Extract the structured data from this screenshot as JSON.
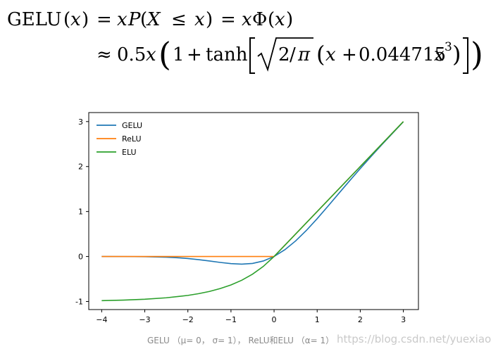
{
  "formula": {
    "line1": {
      "lhs_func": "GELU",
      "lhs_arg": "x",
      "eq1": "=",
      "mid_x": "x",
      "mid_P": "P",
      "mid_X": "X",
      "leq": "≤",
      "mid_arg": "x",
      "eq2": "=",
      "rhs_x": "x",
      "rhs_phi": "Φ",
      "rhs_arg": "x"
    },
    "line2": {
      "approx": "≈",
      "coef": "0.5",
      "x1": "x",
      "one": "1",
      "plus1": "+",
      "tanh": "tanh",
      "frac_num": "2",
      "frac_slash": "/",
      "frac_den": "π",
      "x2": "x",
      "plus2": "+",
      "constant": "0.044715",
      "x3": "x",
      "exponent": "3"
    }
  },
  "chart_data": {
    "type": "line",
    "xlim": [
      -4.3,
      3.35
    ],
    "ylim": [
      -1.18,
      3.2
    ],
    "xticks": [
      "−4",
      "−3",
      "−2",
      "−1",
      "0",
      "1",
      "2",
      "3"
    ],
    "yticks": [
      "-1",
      "0",
      "1",
      "2",
      "3"
    ],
    "grid": false,
    "legend_position": "upper-left",
    "series": [
      {
        "name": "GELU",
        "color": "#1f77b4",
        "x": [
          -4.0,
          -3.5,
          -3.0,
          -2.5,
          -2.25,
          -2.0,
          -1.75,
          -1.5,
          -1.25,
          -1.0,
          -0.75,
          -0.5,
          -0.25,
          0.0,
          0.25,
          0.5,
          0.75,
          1.0,
          1.25,
          1.5,
          1.75,
          2.0,
          2.25,
          2.5,
          3.0
        ],
        "y": [
          0.0,
          -0.001,
          -0.004,
          -0.015,
          -0.027,
          -0.045,
          -0.07,
          -0.1,
          -0.132,
          -0.159,
          -0.17,
          -0.154,
          -0.1,
          0.0,
          0.15,
          0.346,
          0.58,
          0.841,
          1.118,
          1.4,
          1.68,
          1.955,
          2.223,
          2.485,
          2.996
        ]
      },
      {
        "name": "ReLU",
        "color": "#ff7f0e",
        "x": [
          -4.0,
          0.0,
          3.0
        ],
        "y": [
          0.0,
          0.0,
          3.0
        ]
      },
      {
        "name": "ELU",
        "color": "#2ca02c",
        "x": [
          -4.0,
          -3.5,
          -3.0,
          -2.5,
          -2.0,
          -1.75,
          -1.5,
          -1.25,
          -1.0,
          -0.75,
          -0.5,
          -0.25,
          0.0,
          1.0,
          2.0,
          3.0
        ],
        "y": [
          -0.982,
          -0.97,
          -0.95,
          -0.918,
          -0.865,
          -0.826,
          -0.777,
          -0.713,
          -0.632,
          -0.528,
          -0.393,
          -0.221,
          0.0,
          1.0,
          2.0,
          3.0
        ]
      }
    ]
  },
  "caption": {
    "text": "GELU （μ= 0， σ= 1），  ReLU和ELU （α= 1）",
    "watermark": "https://blog.csdn.net/yuexiaomao"
  }
}
